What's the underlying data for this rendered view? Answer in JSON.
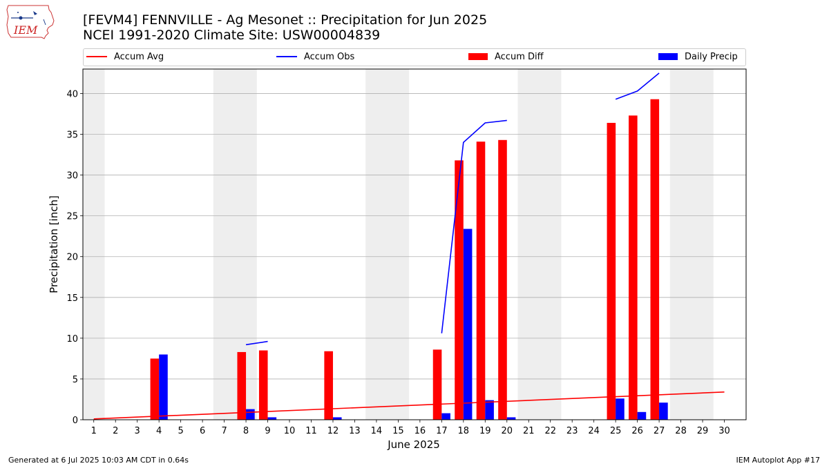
{
  "header": {
    "title_line1": "[FEVM4] FENNVILLE - Ag Mesonet :: Precipitation for Jun 2025",
    "title_line2": "NCEI 1991-2020 Climate Site: USW00004839",
    "logo_text": "IEM"
  },
  "footer": {
    "left": "Generated at 6 Jul 2025 10:03 AM CDT in 0.64s",
    "right": "IEM Autoplot App #17"
  },
  "colors": {
    "accum_avg": "#ff0000",
    "accum_obs": "#0000ff",
    "accum_diff": "#ff0000",
    "daily_precip": "#0000ff",
    "weekend_shade": "#eeeeee",
    "grid": "#b0b0b0"
  },
  "chart_data": {
    "type": "bar",
    "xlabel": "June 2025",
    "ylabel": "Precipitation [inch]",
    "xlim": [
      0.5,
      31
    ],
    "ylim": [
      0,
      43
    ],
    "yticks": [
      0,
      5,
      10,
      15,
      20,
      25,
      30,
      35,
      40
    ],
    "grid": "horizontal",
    "legend_placement": "top",
    "x": [
      1,
      2,
      3,
      4,
      5,
      6,
      7,
      8,
      9,
      10,
      11,
      12,
      13,
      14,
      15,
      16,
      17,
      18,
      19,
      20,
      21,
      22,
      23,
      24,
      25,
      26,
      27,
      28,
      29,
      30
    ],
    "shaded_days": [
      [
        0.5,
        1.5
      ],
      [
        6.5,
        8.5
      ],
      [
        13.5,
        15.5
      ],
      [
        20.5,
        22.5
      ],
      [
        27.5,
        29.5
      ]
    ],
    "series": [
      {
        "name": "Accum Avg",
        "kind": "line",
        "points": [
          [
            1,
            0.1
          ],
          [
            30,
            3.4
          ]
        ]
      },
      {
        "name": "Accum Obs",
        "kind": "line",
        "segments": [
          [
            [
              8,
              9.2
            ],
            [
              9,
              9.6
            ]
          ],
          [
            [
              17,
              10.6
            ],
            [
              18,
              34.0
            ],
            [
              19,
              36.4
            ],
            [
              20,
              36.7
            ]
          ],
          [
            [
              25,
              39.3
            ],
            [
              26,
              40.3
            ],
            [
              27,
              42.5
            ]
          ]
        ]
      },
      {
        "name": "Accum Diff",
        "kind": "bar",
        "values": [
          null,
          null,
          null,
          7.5,
          null,
          null,
          null,
          8.3,
          8.5,
          null,
          null,
          8.4,
          null,
          null,
          null,
          null,
          8.6,
          31.8,
          34.1,
          34.3,
          null,
          null,
          null,
          null,
          36.4,
          37.3,
          39.3,
          null,
          null,
          null
        ]
      },
      {
        "name": "Daily Precip",
        "kind": "bar",
        "values": [
          null,
          null,
          null,
          8.0,
          null,
          null,
          null,
          1.3,
          0.3,
          null,
          null,
          0.3,
          null,
          null,
          null,
          null,
          0.8,
          23.4,
          2.4,
          0.3,
          null,
          null,
          null,
          null,
          2.6,
          0.95,
          2.1,
          null,
          null,
          null
        ]
      }
    ]
  }
}
